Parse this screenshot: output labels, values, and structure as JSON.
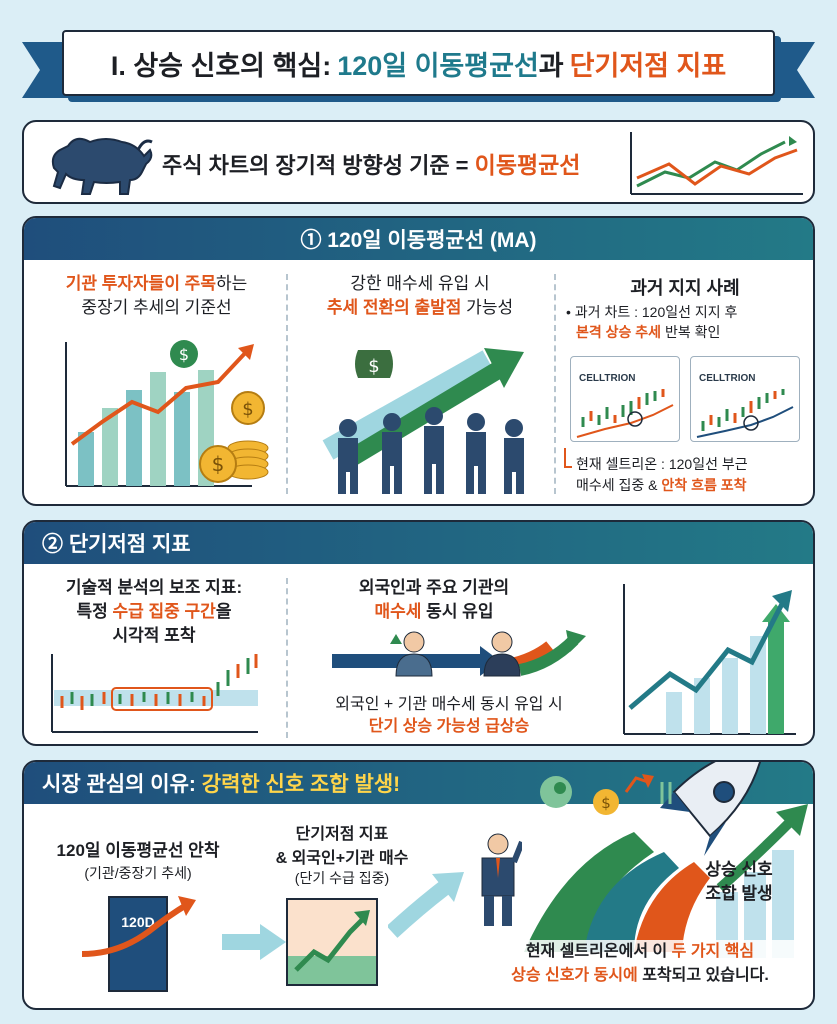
{
  "title": {
    "prefix": "I. 상승 신호의 핵심:",
    "ma_text": "120일 이동평균선",
    "connector": "과",
    "indicator_text": "단기저점 지표"
  },
  "intro": {
    "text": "주식 차트의 장기적 방향성 기준 =",
    "highlight": "이동평균선"
  },
  "section1": {
    "header": "① 120일 이동평균선 (MA)",
    "col1": {
      "line1_highlight": "기관 투자자들이 주목",
      "line1_rest": "하는",
      "line2": "중장기 추세의 기준선"
    },
    "col2": {
      "line1": "강한 매수세 유입 시",
      "line2_highlight": "추세 전환의 출발점",
      "line2_rest": " 가능성"
    },
    "col3": {
      "title": "과거 지지 사례",
      "bullet_line1": "• 과거 차트 : 120일선 지지 후",
      "bullet_line2_highlight": "본격 상승 추세",
      "bullet_line2_rest": " 반복 확인",
      "chart_label_1": "CELLTRION",
      "chart_label_2": "CELLTRION",
      "current_line1": "현재 셀트리온 : 120일선 부근",
      "current_line2_rest": "매수세 집중 & ",
      "current_line2_highlight": "안착 흐름 포착"
    }
  },
  "section2": {
    "header": "② 단기저점 지표",
    "col1": {
      "line1": "기술적 분석의 보조 지표:",
      "line2_prefix": "특정 ",
      "line2_highlight": "수급 집중 구간",
      "line2_suffix": "을",
      "line3": "시각적 포착"
    },
    "col2": {
      "line1": "외국인과 주요 기관의",
      "line2_highlight": "매수세",
      "line2_rest": " 동시 유입",
      "bottom_line1": "외국인 + 기관 매수세 동시 유입 시",
      "bottom_line2": "단기 상승 가능성 급상승"
    }
  },
  "section3": {
    "header_prefix": "시장 관심의 이유:",
    "header_highlight": "강력한 신호 조합 발생!",
    "left_title": "120일 이동평균선 안착",
    "left_sub": "(기관/중장기 추세)",
    "left_box_label": "120D",
    "mid_title_1": "단기저점 지표",
    "mid_title_2": "& 외국인+기관 매수",
    "mid_sub": "(단기 수급 집중)",
    "rocket_label_1": "상승 신호",
    "rocket_label_2": "조합 발생",
    "bottom_line1_prefix": "현재 셀트리온에서 이 ",
    "bottom_line1_highlight": "두 가지 핵심",
    "bottom_line2_highlight": "상승 신호가 동시에",
    "bottom_line2_rest": " 포착되고 있습니다."
  },
  "colors": {
    "navy": "#1f4e7c",
    "teal": "#237a87",
    "orange": "#e0561b",
    "green": "#2f8a4f",
    "background": "#dbeef6"
  }
}
